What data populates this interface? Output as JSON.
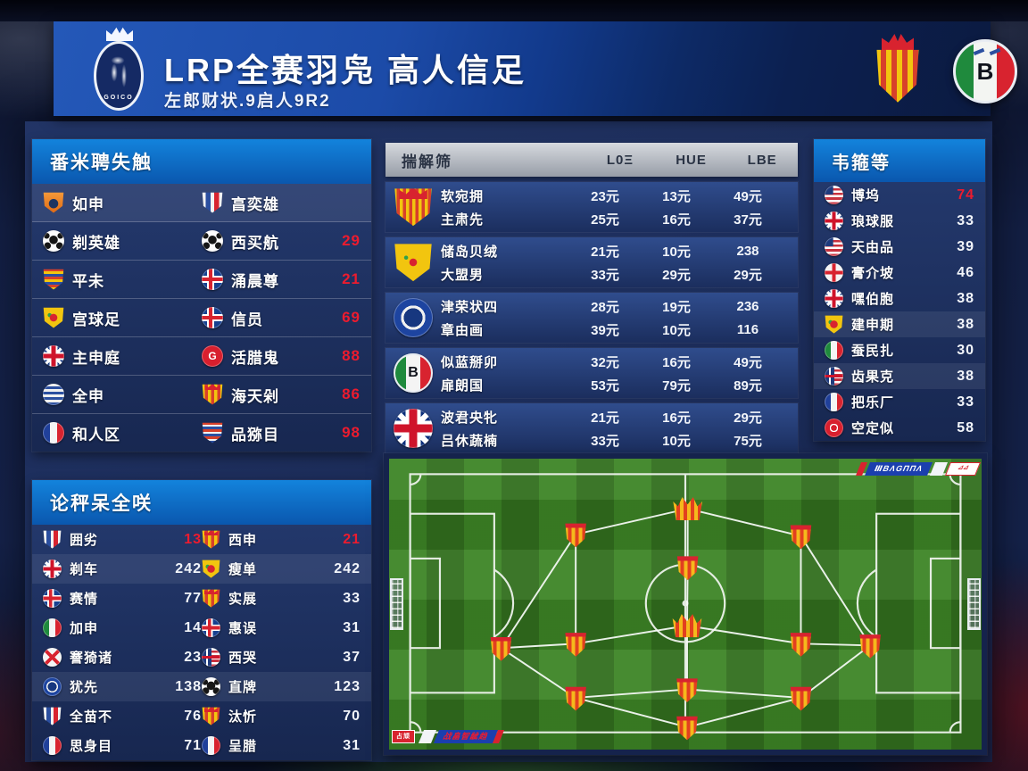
{
  "header": {
    "title": "LRP全赛羽凫 高人信足",
    "subtitle": "左郎财状.9启人9R2",
    "logo_text": "GOICO",
    "italy_letter": "B"
  },
  "icons": {
    "g_letter": "G",
    "b_letter": "B"
  },
  "colors": {
    "accent_red": "#ed1b2e",
    "header_blue": "#0e6fc9",
    "pitch_green": "#3d8526"
  },
  "legend_panel": {
    "title": "番米聘失触",
    "rows": [
      {
        "hl": true,
        "left": {
          "icon": "crest-orange",
          "name": "如申"
        },
        "right": {
          "icon": "crest-france",
          "name": "亯奕雄",
          "value": ""
        }
      },
      {
        "hl": false,
        "left": {
          "icon": "ball",
          "name": "剃英雄"
        },
        "right": {
          "icon": "ball",
          "name": "西买航",
          "value": "29"
        }
      },
      {
        "hl": false,
        "left": {
          "icon": "badge-stripes",
          "name": "平未"
        },
        "right": {
          "icon": "nordic",
          "name": "涌晨尊",
          "value": "21"
        }
      },
      {
        "hl": false,
        "left": {
          "icon": "shield-yellow",
          "name": "宫球足"
        },
        "right": {
          "icon": "nordic",
          "name": "信员",
          "value": "69"
        }
      },
      {
        "hl": false,
        "left": {
          "icon": "uk-flag",
          "name": "主申庭"
        },
        "right": {
          "icon": "red-circle-g",
          "name": "活腊鬼",
          "value": "88"
        }
      },
      {
        "hl": false,
        "left": {
          "icon": "stripe-circle",
          "name": "全申"
        },
        "right": {
          "icon": "crest-crown",
          "name": "海天剁",
          "value": "86"
        }
      },
      {
        "hl": false,
        "left": {
          "icon": "france-circle",
          "name": "和人区"
        },
        "right": {
          "icon": "crest-rows",
          "name": "品猕目",
          "value": "98"
        }
      }
    ]
  },
  "stats_panel": {
    "title": "论秤呆全咲",
    "rows": [
      {
        "hl": false,
        "left": {
          "icon": "crest-france",
          "name": "囲劣",
          "value": "13",
          "red": true
        },
        "right": {
          "icon": "crest-crown",
          "name": "西申",
          "value": "21",
          "red": true
        }
      },
      {
        "hl": true,
        "left": {
          "icon": "uk-flag",
          "name": "剃车",
          "value": "242",
          "red": false
        },
        "right": {
          "icon": "shield-yellow",
          "name": "瘦单",
          "value": "242",
          "red": false
        }
      },
      {
        "hl": false,
        "left": {
          "icon": "nordic",
          "name": "赛情",
          "value": "77",
          "red": false
        },
        "right": {
          "icon": "crest-crown",
          "name": "实展",
          "value": "33",
          "red": false
        }
      },
      {
        "hl": false,
        "left": {
          "icon": "italy-circle",
          "name": "加申",
          "value": "14",
          "red": false
        },
        "right": {
          "icon": "nordic",
          "name": "惠误",
          "value": "31",
          "red": false
        }
      },
      {
        "hl": false,
        "left": {
          "icon": "x-cross",
          "name": "謇猗诸",
          "value": "23",
          "red": false
        },
        "right": {
          "icon": "mix-flag",
          "name": "西哭",
          "value": "37",
          "red": false
        }
      },
      {
        "hl": true,
        "left": {
          "icon": "blue-circle",
          "name": "犹先",
          "value": "138",
          "red": false
        },
        "right": {
          "icon": "ball",
          "name": "直牌",
          "value": "123",
          "red": false
        }
      },
      {
        "hl": false,
        "left": {
          "icon": "crest-france",
          "name": "全苗不",
          "value": "76",
          "red": false
        },
        "right": {
          "icon": "crest-crown",
          "name": "汰忻",
          "value": "70",
          "red": false
        }
      },
      {
        "hl": false,
        "left": {
          "icon": "france-circle",
          "name": "思身目",
          "value": "71",
          "red": false
        },
        "right": {
          "icon": "france-circle",
          "name": "呈腊",
          "value": "31",
          "red": false
        }
      }
    ]
  },
  "odds_table": {
    "title": "揣解筛",
    "columns": [
      "L0Ξ",
      "HUΕ",
      "LBΕ"
    ],
    "groups": [
      {
        "icon": "crest-crown",
        "rows": [
          {
            "name": "软宛拥",
            "v1": "23元",
            "v2": "13元",
            "v3": "49元"
          },
          {
            "name": "主肃先",
            "v1": "25元",
            "v2": "16元",
            "v3": "37元"
          }
        ]
      },
      {
        "icon": "shield-yellow",
        "rows": [
          {
            "name": "储岛贝绒",
            "v1": "21元",
            "v2": "10元",
            "v3": "238"
          },
          {
            "name": "大盟男",
            "v1": "33元",
            "v2": "29元",
            "v3": "29元"
          }
        ]
      },
      {
        "icon": "blue-circle",
        "rows": [
          {
            "name": "津荣状四",
            "v1": "28元",
            "v2": "19元",
            "v3": "236"
          },
          {
            "name": "章由画",
            "v1": "39元",
            "v2": "10元",
            "v3": "116"
          }
        ]
      },
      {
        "icon": "italy-badge",
        "rows": [
          {
            "name": "似蓝掰卯",
            "v1": "32元",
            "v2": "16元",
            "v3": "49元"
          },
          {
            "name": "扉朗国",
            "v1": "53元",
            "v2": "79元",
            "v3": "89元"
          }
        ]
      },
      {
        "icon": "uk-flag",
        "rows": [
          {
            "name": "波君央牝",
            "v1": "21元",
            "v2": "16元",
            "v3": "29元"
          },
          {
            "name": "吕休蔬楠",
            "v1": "33元",
            "v2": "10元",
            "v3": "75元"
          }
        ]
      }
    ]
  },
  "rank_panel": {
    "title": "韦箍等",
    "rows": [
      {
        "icon": "us-flag",
        "name": "博坞",
        "value": "74",
        "red": true,
        "hl": false
      },
      {
        "icon": "uk-flag",
        "name": "琅球服",
        "value": "33",
        "red": false,
        "hl": false
      },
      {
        "icon": "us-flag",
        "name": "天由品",
        "value": "39",
        "red": false,
        "hl": false
      },
      {
        "icon": "uk-cross",
        "name": "膏介坡",
        "value": "46",
        "red": false,
        "hl": false
      },
      {
        "icon": "uk-flag",
        "name": "嘿伯胞",
        "value": "38",
        "red": false,
        "hl": false
      },
      {
        "icon": "shield-yellow",
        "name": "建申期",
        "value": "38",
        "red": false,
        "hl": true
      },
      {
        "icon": "italy-circle",
        "name": "蚕民扎",
        "value": "30",
        "red": false,
        "hl": false
      },
      {
        "icon": "mix-flag",
        "name": "齿果克",
        "value": "38",
        "red": false,
        "hl": true
      },
      {
        "icon": "france-circle",
        "name": "把乐厂",
        "value": "33",
        "red": false,
        "hl": false
      },
      {
        "icon": "red-circle",
        "name": "空定似",
        "value": "58",
        "red": false,
        "hl": false
      }
    ]
  },
  "pitch": {
    "top_banner": {
      "text": "ⅢBΛGΠΠΛ",
      "box": "⊿⊿"
    },
    "bottom_banner": {
      "box": "占颃",
      "text": "战畠智龇趋"
    },
    "markers": [
      {
        "x": 50.4,
        "y": 17.2,
        "t": "crown"
      },
      {
        "x": 31.5,
        "y": 26.0,
        "t": "shield"
      },
      {
        "x": 69.5,
        "y": 26.6,
        "t": "shield"
      },
      {
        "x": 50.4,
        "y": 37.3,
        "t": "shield"
      },
      {
        "x": 18.9,
        "y": 65.1,
        "t": "shield"
      },
      {
        "x": 31.5,
        "y": 63.6,
        "t": "shield"
      },
      {
        "x": 69.5,
        "y": 63.6,
        "t": "shield"
      },
      {
        "x": 81.2,
        "y": 64.2,
        "t": "shield"
      },
      {
        "x": 50.3,
        "y": 57.4,
        "t": "crown"
      },
      {
        "x": 50.3,
        "y": 79.3,
        "t": "shield"
      },
      {
        "x": 31.5,
        "y": 82.2,
        "t": "shield"
      },
      {
        "x": 69.5,
        "y": 82.2,
        "t": "shield"
      },
      {
        "x": 50.3,
        "y": 92.3,
        "t": "shield"
      }
    ],
    "edges": [
      [
        0,
        1
      ],
      [
        0,
        2
      ],
      [
        0,
        3
      ],
      [
        3,
        8
      ],
      [
        1,
        4
      ],
      [
        1,
        5
      ],
      [
        2,
        6
      ],
      [
        2,
        7
      ],
      [
        4,
        5
      ],
      [
        5,
        8
      ],
      [
        6,
        8
      ],
      [
        6,
        7
      ],
      [
        4,
        10
      ],
      [
        7,
        11
      ],
      [
        8,
        9
      ],
      [
        9,
        10
      ],
      [
        9,
        11
      ],
      [
        10,
        12
      ],
      [
        11,
        12
      ]
    ]
  }
}
